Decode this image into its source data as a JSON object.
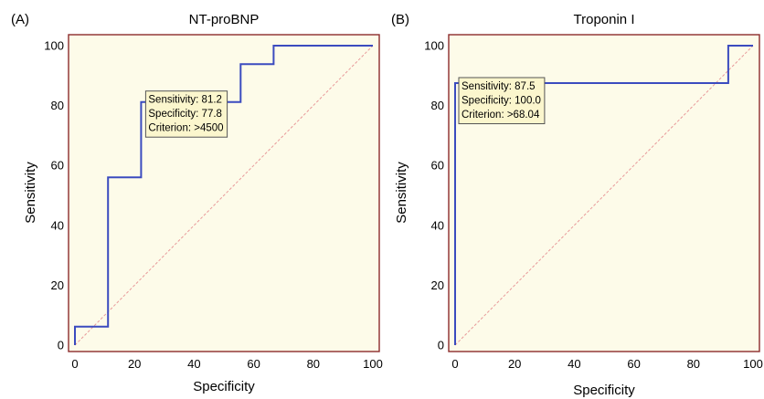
{
  "colors": {
    "plot_background": "#fdfbe9",
    "frame": "#8c2b2b",
    "curve": "#3b4bbf",
    "diagonal": "#e89a9a",
    "note_background": "#fbf6cd",
    "note_border": "#555555"
  },
  "chart_data": [
    {
      "type": "line",
      "panel_label": "(A)",
      "title": "NT-proBNP",
      "xlabel": "Specificity",
      "ylabel": "Sensitivity",
      "xlim": [
        0,
        100
      ],
      "ylim": [
        0,
        100
      ],
      "xticks": [
        0,
        20,
        40,
        60,
        80,
        100
      ],
      "yticks": [
        0,
        20,
        40,
        60,
        80,
        100
      ],
      "x_tick_labels": [
        "0",
        "20",
        "40",
        "60",
        "80",
        "100"
      ],
      "y_tick_labels": [
        "0",
        "20",
        "40",
        "60",
        "80",
        "100"
      ],
      "grid": false,
      "reference_line": [
        [
          0,
          0
        ],
        [
          100,
          100
        ]
      ],
      "series": [
        {
          "x": [
            0,
            0,
            11.1,
            11.1,
            22.2,
            22.2,
            55.6,
            55.6,
            66.7,
            66.7,
            100
          ],
          "y": [
            0,
            6.2,
            6.2,
            56,
            56,
            81.2,
            81.2,
            93.8,
            93.8,
            100,
            100
          ]
        }
      ],
      "annotation": {
        "at": [
          22.2,
          81.2
        ],
        "lines": [
          "Sensitivity: 81.2",
          "Specificity: 77.8",
          "Criterion: >4500"
        ]
      }
    },
    {
      "type": "line",
      "panel_label": "(B)",
      "title": "Troponin I",
      "xlabel": "Specificity",
      "ylabel": "Sensitivity",
      "xlim": [
        0,
        100
      ],
      "ylim": [
        0,
        100
      ],
      "xticks": [
        0,
        20,
        40,
        60,
        80,
        100
      ],
      "yticks": [
        0,
        20,
        40,
        60,
        80,
        100
      ],
      "x_tick_labels": [
        "0",
        "20",
        "40",
        "60",
        "80",
        "100"
      ],
      "y_tick_labels": [
        "0",
        "20",
        "40",
        "60",
        "80",
        "100"
      ],
      "grid": false,
      "reference_line": [
        [
          0,
          0
        ],
        [
          100,
          100
        ]
      ],
      "series": [
        {
          "x": [
            0,
            0,
            91.7,
            91.7,
            100
          ],
          "y": [
            0,
            87.5,
            87.5,
            100,
            100
          ]
        }
      ],
      "annotation": {
        "at": [
          0,
          87.5
        ],
        "lines": [
          "Sensitivity: 87.5",
          "Specificity: 100.0",
          "Criterion: >68.04"
        ]
      }
    }
  ]
}
